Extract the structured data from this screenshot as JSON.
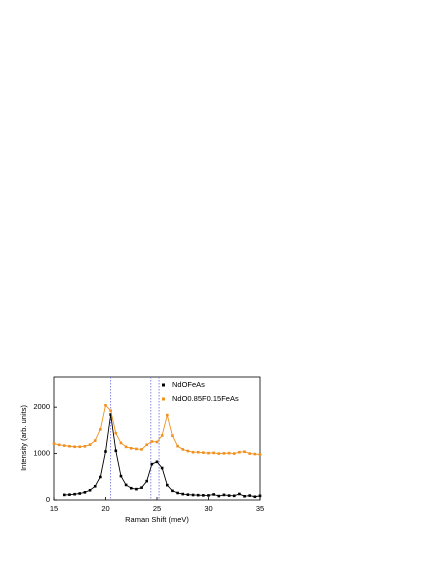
{
  "chart_data": {
    "type": "scatter",
    "x_label": "Raman Shift (meV)",
    "y_label": "Intensity (arb. units)",
    "xlim": [
      15,
      35
    ],
    "ylim": [
      0,
      2650
    ],
    "xticks": [
      15,
      20,
      25,
      30,
      35
    ],
    "yticks": [
      0,
      1000,
      2000
    ],
    "connect": true,
    "vlines": [
      20.5,
      24.4,
      25.2
    ],
    "vline_color": "#6a6ae0",
    "series": [
      {
        "name": "NdOFeAs",
        "color": "#000000",
        "x": [
          16,
          16.5,
          17,
          17.5,
          18,
          18.5,
          19,
          19.5,
          20,
          20.5,
          21,
          21.5,
          22,
          22.5,
          23,
          23.5,
          24,
          24.5,
          25,
          25.5,
          26,
          26.5,
          27,
          27.5,
          28,
          28.5,
          29,
          29.5,
          30,
          30.5,
          31,
          31.5,
          32,
          32.5,
          33,
          33.5,
          34,
          34.5,
          35
        ],
        "values": [
          110,
          115,
          125,
          140,
          165,
          210,
          295,
          495,
          1045,
          1840,
          1060,
          515,
          325,
          254,
          234,
          266,
          406,
          773,
          823,
          689,
          320,
          198,
          151,
          128,
          115,
          108,
          104,
          100,
          98,
          120,
          85,
          110,
          95,
          90,
          130,
          80,
          95,
          70,
          90
        ]
      },
      {
        "name": "NdO0.85F0.15FeAs",
        "color": "#f0901e",
        "x": [
          15,
          15.5,
          16,
          16.5,
          17,
          17.5,
          18,
          18.5,
          19,
          19.5,
          20,
          20.5,
          21,
          21.5,
          22,
          22.5,
          23,
          23.5,
          24,
          24.5,
          25,
          25.5,
          26,
          26.5,
          27,
          27.5,
          28,
          28.5,
          29,
          29.5,
          30,
          30.5,
          31,
          31.5,
          32,
          32.5,
          33,
          33.5,
          34,
          34.5,
          35
        ],
        "values": [
          1214,
          1188,
          1172,
          1158,
          1147,
          1147,
          1156,
          1192,
          1280,
          1521,
          2040,
          1925,
          1440,
          1230,
          1145,
          1115,
          1100,
          1090,
          1190,
          1260,
          1250,
          1390,
          1830,
          1385,
          1160,
          1090,
          1055,
          1030,
          1030,
          1020,
          1010,
          1015,
          1000,
          1005,
          1010,
          1000,
          1030,
          1040,
          1000,
          990,
          980
        ]
      }
    ]
  }
}
